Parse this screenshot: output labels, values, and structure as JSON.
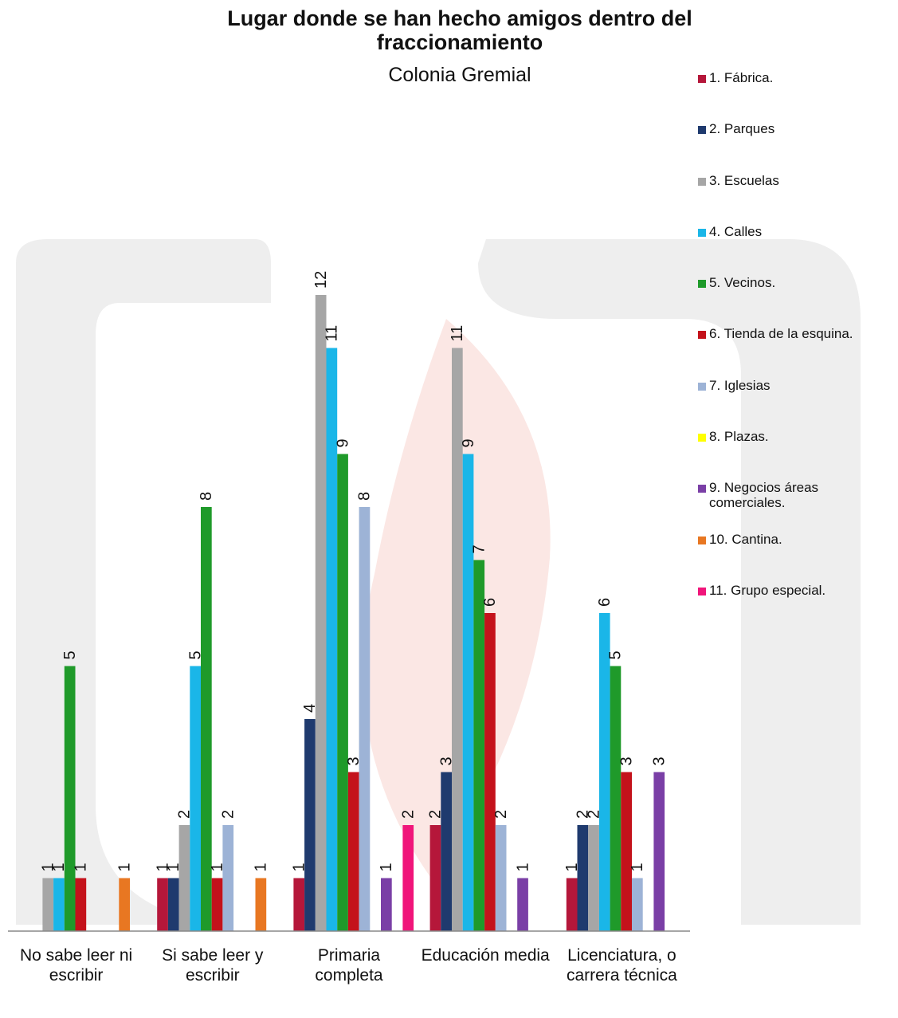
{
  "chart_data": {
    "type": "bar",
    "title": "Lugar donde se han hecho amigos dentro del fraccionamiento",
    "subtitle": "Colonia Gremial",
    "categories": [
      "No sabe leer ni escribir",
      "Si sabe leer y escribir",
      "Primaria completa",
      "Educación media",
      "Licenciatura, o carrera técnica"
    ],
    "series": [
      {
        "name": "1. Fábrica.",
        "color": "#b5173a",
        "values": [
          null,
          1,
          1,
          2,
          1
        ]
      },
      {
        "name": "2. Parques",
        "color": "#1f3a6e",
        "values": [
          null,
          1,
          4,
          3,
          2
        ]
      },
      {
        "name": "3. Escuelas",
        "color": "#a6a6a6",
        "values": [
          1,
          2,
          12,
          11,
          2
        ]
      },
      {
        "name": "4. Calles",
        "color": "#1ab6e8",
        "values": [
          1,
          5,
          11,
          9,
          6
        ]
      },
      {
        "name": "5. Vecinos.",
        "color": "#1f9a2a",
        "values": [
          5,
          8,
          9,
          7,
          5
        ]
      },
      {
        "name": "6. Tienda de la esquina.",
        "color": "#c4121b",
        "values": [
          1,
          1,
          3,
          6,
          3
        ]
      },
      {
        "name": "7. Iglesias",
        "color": "#9db3d6",
        "values": [
          null,
          2,
          8,
          2,
          1
        ]
      },
      {
        "name": "8. Plazas.",
        "color": "#ffff00",
        "values": [
          null,
          null,
          null,
          null,
          null
        ]
      },
      {
        "name": "9. Negocios áreas comerciales.",
        "color": "#7a3fa6",
        "values": [
          null,
          null,
          1,
          1,
          3
        ]
      },
      {
        "name": "10. Cantina.",
        "color": "#e87722",
        "values": [
          1,
          1,
          null,
          null,
          null
        ]
      },
      {
        "name": "11. Grupo especial.",
        "color": "#f0157a",
        "values": [
          null,
          null,
          2,
          null,
          null
        ]
      }
    ],
    "ylim": [
      0,
      16
    ]
  }
}
